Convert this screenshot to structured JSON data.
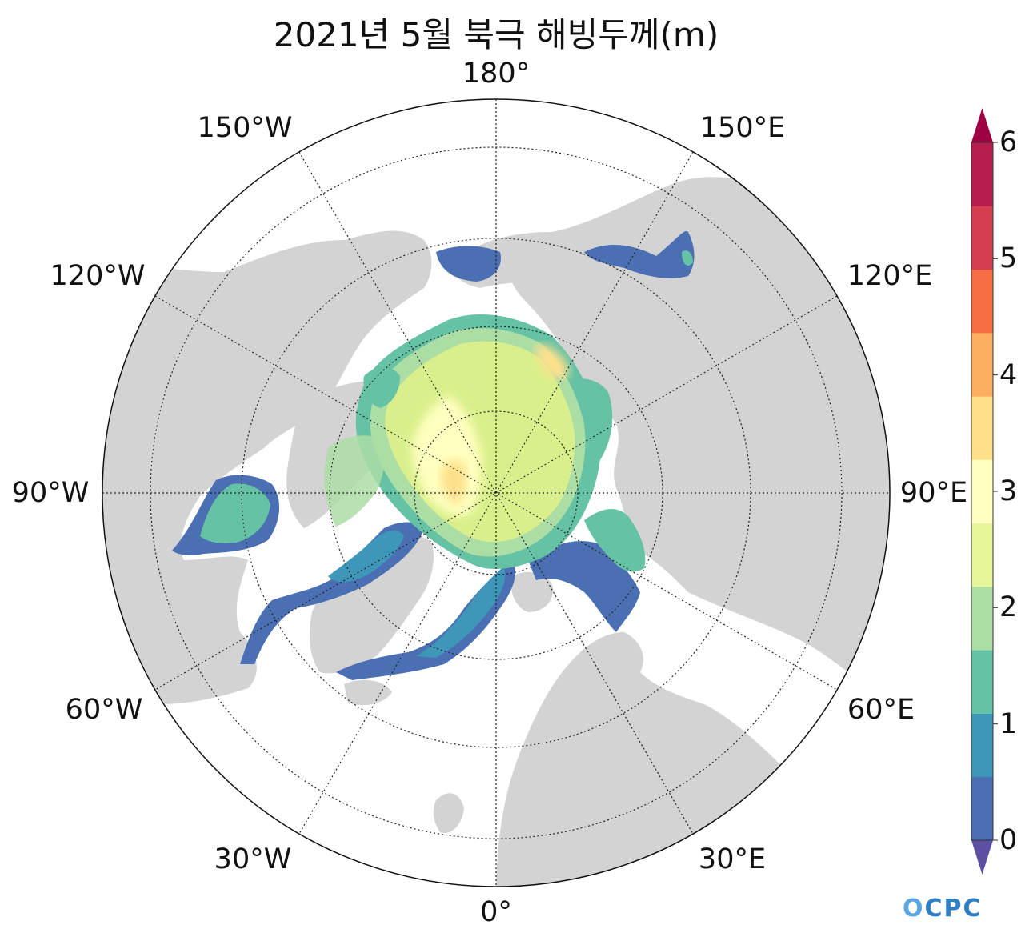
{
  "title": "2021년 5월 북극 해빙두께(m)",
  "longitude_labels": {
    "lon_180": "180°",
    "lon_150w": "150°W",
    "lon_150e": "150°E",
    "lon_120w": "120°W",
    "lon_120e": "120°E",
    "lon_90w": "90°W",
    "lon_90e": "90°E",
    "lon_60w": "60°W",
    "lon_60e": "60°E",
    "lon_30w": "30°W",
    "lon_30e": "30°E",
    "lon_0": "0°"
  },
  "colorbar": {
    "ticks": [
      "0",
      "1",
      "2",
      "3",
      "4",
      "5",
      "6"
    ],
    "levels": [
      0,
      0.5,
      1,
      1.5,
      2,
      2.5,
      3,
      3.5,
      4,
      4.5,
      5,
      5.5,
      6
    ],
    "colors": [
      "#5e4fa2",
      "#4a6fb3",
      "#3e96b8",
      "#66c2a5",
      "#abdda4",
      "#e6f598",
      "#ffffbf",
      "#fee08b",
      "#fdae61",
      "#f46d43",
      "#d53e4f",
      "#b71c4e",
      "#9e0142"
    ]
  },
  "map_colors": {
    "land": "#d3d3d3",
    "ocean": "#ffffff"
  },
  "logo": {
    "mark": "O",
    "text": "CPC"
  }
}
